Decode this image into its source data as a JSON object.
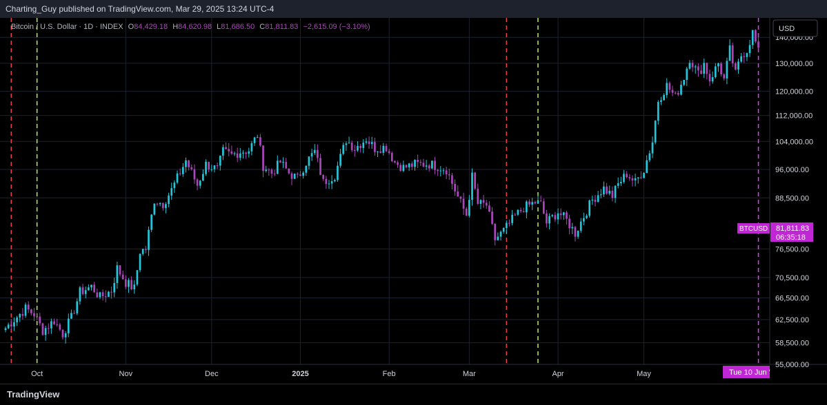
{
  "header": {
    "text": "Charting_Guy published on TradingView.com, Mar 29, 2025 13:24 UTC-4"
  },
  "footer": {
    "brand": "TradingView"
  },
  "legend": {
    "symbol": "Bitcoin / U.S. Dollar · 1D · INDEX",
    "o_label": "O",
    "o": "84,429.18",
    "h_label": "H",
    "h": "84,620.98",
    "l_label": "L",
    "l": "81,686.50",
    "c_label": "C",
    "c": "81,811.83",
    "change": "−2,615.09 (−3.10%)"
  },
  "currency_button": "USD",
  "price_tag": {
    "symbol": "BTCUSD",
    "price": "81,811.83",
    "countdown": "06:35:18"
  },
  "date_tag": "Tue 10 Jun '",
  "colors": {
    "up": "#26c6da",
    "down": "#ab47bc",
    "red_marker": "#ef3d4f",
    "green_marker": "#b7f34a",
    "magenta_marker": "#e040fb",
    "tag": "#c026d3"
  },
  "chart_data": {
    "type": "candlestick",
    "title": "Bitcoin / U.S. Dollar · 1D · INDEX",
    "xlabel": "",
    "ylabel": "",
    "x_tick_labels": [
      "Oct",
      "Nov",
      "Dec",
      "2025",
      "Feb",
      "Mar",
      "Apr",
      "May"
    ],
    "y_tick_labels": [
      "140,000.00",
      "130,000.00",
      "120,000.00",
      "112,000.00",
      "104,000.00",
      "96,000.00",
      "88,500.00",
      "76,500.00",
      "70,500.00",
      "66,500.00",
      "62,500.00",
      "58,500.00",
      "55,000.00"
    ],
    "y_scale": "log",
    "ylim": [
      55000,
      148000
    ],
    "grid": true,
    "vertical_markers": [
      {
        "date": "2024-09-22",
        "color": "red"
      },
      {
        "date": "2024-10-01",
        "color": "green"
      },
      {
        "date": "2025-03-14",
        "color": "red"
      },
      {
        "date": "2025-03-25",
        "color": "green"
      },
      {
        "date": "2025-06-10",
        "color": "magenta"
      }
    ],
    "series": [
      {
        "close_points": [
          [
            "2024-09-20",
            61000
          ],
          [
            "2024-09-23",
            62500
          ],
          [
            "2024-09-27",
            64500
          ],
          [
            "2024-09-30",
            63500
          ],
          [
            "2024-10-03",
            60600
          ],
          [
            "2024-10-07",
            62300
          ],
          [
            "2024-10-10",
            60000
          ],
          [
            "2024-10-13",
            62800
          ],
          [
            "2024-10-16",
            67600
          ],
          [
            "2024-10-20",
            68700
          ],
          [
            "2024-10-23",
            66600
          ],
          [
            "2024-10-27",
            67900
          ],
          [
            "2024-10-29",
            72400
          ],
          [
            "2024-11-01",
            69500
          ],
          [
            "2024-11-04",
            68300
          ],
          [
            "2024-11-06",
            76000
          ],
          [
            "2024-11-08",
            76500
          ],
          [
            "2024-11-11",
            88000
          ],
          [
            "2024-11-14",
            87000
          ],
          [
            "2024-11-17",
            90500
          ],
          [
            "2024-11-22",
            98500
          ],
          [
            "2024-11-26",
            91800
          ],
          [
            "2024-11-29",
            97400
          ],
          [
            "2024-12-03",
            96000
          ],
          [
            "2024-12-05",
            101000
          ],
          [
            "2024-12-08",
            100000
          ],
          [
            "2024-12-11",
            101000
          ],
          [
            "2024-12-14",
            101400
          ],
          [
            "2024-12-17",
            106000
          ],
          [
            "2024-12-19",
            97000
          ],
          [
            "2024-12-22",
            95000
          ],
          [
            "2024-12-25",
            98000
          ],
          [
            "2024-12-28",
            95000
          ],
          [
            "2024-12-31",
            93500
          ],
          [
            "2025-01-03",
            98000
          ],
          [
            "2025-01-06",
            101000
          ],
          [
            "2025-01-09",
            92500
          ],
          [
            "2025-01-13",
            94500
          ],
          [
            "2025-01-17",
            104500
          ],
          [
            "2025-01-20",
            102000
          ],
          [
            "2025-01-24",
            104800
          ],
          [
            "2025-01-27",
            102000
          ],
          [
            "2025-01-31",
            102400
          ],
          [
            "2025-02-03",
            98000
          ],
          [
            "2025-02-06",
            96500
          ],
          [
            "2025-02-10",
            97400
          ],
          [
            "2025-02-15",
            97500
          ],
          [
            "2025-02-19",
            96600
          ],
          [
            "2025-02-21",
            96000
          ],
          [
            "2025-02-25",
            88700
          ],
          [
            "2025-02-28",
            84300
          ],
          [
            "2025-03-02",
            94000
          ],
          [
            "2025-03-04",
            87000
          ],
          [
            "2025-03-07",
            86700
          ],
          [
            "2025-03-10",
            78600
          ],
          [
            "2025-03-13",
            80500
          ],
          [
            "2025-03-17",
            84000
          ],
          [
            "2025-03-20",
            86000
          ],
          [
            "2025-03-24",
            87400
          ],
          [
            "2025-03-26",
            86900
          ],
          [
            "2025-03-28",
            82400
          ],
          [
            "2025-04-01",
            85000
          ],
          [
            "2025-04-04",
            83000
          ],
          [
            "2025-04-07",
            80000
          ],
          [
            "2025-04-10",
            84000
          ],
          [
            "2025-04-13",
            88000
          ],
          [
            "2025-04-17",
            91000
          ],
          [
            "2025-04-20",
            89000
          ],
          [
            "2025-04-22",
            92000
          ],
          [
            "2025-04-25",
            94800
          ],
          [
            "2025-04-28",
            92500
          ],
          [
            "2025-05-01",
            96000
          ],
          [
            "2025-05-04",
            104000
          ],
          [
            "2025-05-06",
            117000
          ],
          [
            "2025-05-09",
            122000
          ],
          [
            "2025-05-12",
            118000
          ],
          [
            "2025-05-15",
            125000
          ],
          [
            "2025-05-17",
            132000
          ],
          [
            "2025-05-20",
            126000
          ],
          [
            "2025-05-22",
            130000
          ],
          [
            "2025-05-24",
            124000
          ],
          [
            "2025-05-27",
            130000
          ],
          [
            "2025-05-29",
            124000
          ],
          [
            "2025-05-31",
            135000
          ],
          [
            "2025-06-02",
            126000
          ],
          [
            "2025-06-04",
            133000
          ],
          [
            "2025-06-06",
            135000
          ],
          [
            "2025-06-08",
            142000
          ],
          [
            "2025-06-10",
            134000
          ]
        ]
      }
    ]
  }
}
